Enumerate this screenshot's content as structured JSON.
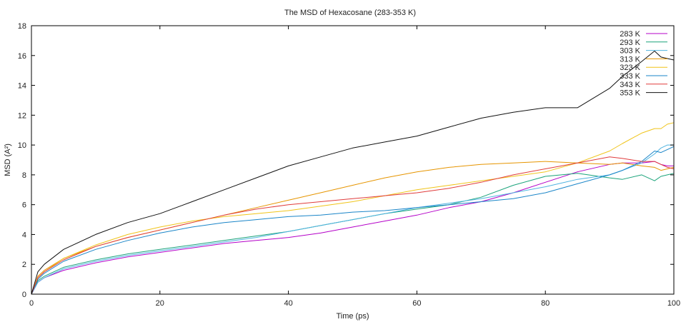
{
  "chart_data": {
    "type": "line",
    "title": "The MSD of Hexacosane (283-353 K)",
    "xlabel": "Time (ps)",
    "ylabel": "MSD (A²)",
    "xlim": [
      0,
      100
    ],
    "ylim": [
      0,
      18
    ],
    "xticks": [
      0,
      20,
      40,
      60,
      80,
      100
    ],
    "yticks": [
      0,
      2,
      4,
      6,
      8,
      10,
      12,
      14,
      16,
      18
    ],
    "grid": false,
    "legend_position": "top-right",
    "x": [
      0,
      1,
      2,
      5,
      10,
      15,
      20,
      25,
      30,
      35,
      40,
      45,
      50,
      55,
      60,
      65,
      70,
      75,
      80,
      85,
      90,
      92,
      95,
      97,
      98,
      99,
      100
    ],
    "series": [
      {
        "name": "283 K",
        "color": "#b400c8",
        "values": [
          0,
          0.8,
          1.1,
          1.6,
          2.1,
          2.5,
          2.8,
          3.1,
          3.4,
          3.6,
          3.8,
          4.1,
          4.5,
          4.9,
          5.3,
          5.8,
          6.2,
          6.8,
          7.5,
          8.2,
          8.7,
          8.8,
          8.8,
          8.9,
          8.7,
          8.6,
          8.6
        ]
      },
      {
        "name": "293 K",
        "color": "#1aa37a",
        "values": [
          0,
          0.9,
          1.2,
          1.8,
          2.3,
          2.7,
          3.0,
          3.3,
          3.6,
          3.9,
          4.2,
          4.6,
          5.0,
          5.4,
          5.7,
          6.0,
          6.5,
          7.3,
          7.9,
          8.1,
          7.8,
          7.7,
          8.0,
          7.6,
          7.9,
          8.0,
          8.1
        ]
      },
      {
        "name": "303 K",
        "color": "#4fb3e0",
        "values": [
          0,
          0.8,
          1.1,
          1.7,
          2.2,
          2.6,
          2.9,
          3.2,
          3.5,
          3.8,
          4.2,
          4.6,
          5.0,
          5.4,
          5.8,
          6.1,
          6.4,
          6.8,
          7.2,
          7.7,
          8.0,
          8.3,
          8.8,
          9.4,
          9.8,
          10.0,
          10.0
        ]
      },
      {
        "name": "313 K",
        "color": "#e69500",
        "values": [
          0,
          1.2,
          1.6,
          2.4,
          3.2,
          3.8,
          4.3,
          4.8,
          5.3,
          5.8,
          6.3,
          6.8,
          7.3,
          7.8,
          8.2,
          8.5,
          8.7,
          8.8,
          8.9,
          8.8,
          8.7,
          8.8,
          8.6,
          8.5,
          8.3,
          8.4,
          8.5
        ]
      },
      {
        "name": "323 K",
        "color": "#f0c419",
        "values": [
          0,
          1.1,
          1.5,
          2.4,
          3.3,
          4.0,
          4.5,
          4.9,
          5.2,
          5.4,
          5.6,
          5.9,
          6.2,
          6.6,
          7.0,
          7.3,
          7.6,
          7.9,
          8.2,
          8.8,
          9.6,
          10.1,
          10.8,
          11.1,
          11.1,
          11.4,
          11.5
        ]
      },
      {
        "name": "333 K",
        "color": "#1a85c8",
        "values": [
          0,
          1.0,
          1.4,
          2.2,
          3.0,
          3.6,
          4.1,
          4.5,
          4.8,
          5.0,
          5.2,
          5.3,
          5.5,
          5.6,
          5.8,
          6.0,
          6.2,
          6.4,
          6.8,
          7.4,
          8.0,
          8.3,
          8.9,
          9.6,
          9.5,
          9.7,
          9.9
        ]
      },
      {
        "name": "343 K",
        "color": "#e03c3c",
        "values": [
          0,
          1.1,
          1.5,
          2.3,
          3.2,
          3.8,
          4.3,
          4.8,
          5.3,
          5.7,
          6.0,
          6.2,
          6.4,
          6.6,
          6.8,
          7.1,
          7.5,
          8.0,
          8.4,
          8.8,
          9.2,
          9.1,
          8.9,
          8.9,
          8.7,
          8.5,
          8.4
        ]
      },
      {
        "name": "353 K",
        "color": "#111111",
        "values": [
          0,
          1.5,
          2.0,
          3.0,
          4.0,
          4.8,
          5.4,
          6.2,
          7.0,
          7.8,
          8.6,
          9.2,
          9.8,
          10.2,
          10.6,
          11.2,
          11.8,
          12.2,
          12.5,
          12.5,
          13.8,
          14.6,
          15.6,
          16.3,
          15.9,
          15.8,
          15.7
        ]
      }
    ]
  }
}
